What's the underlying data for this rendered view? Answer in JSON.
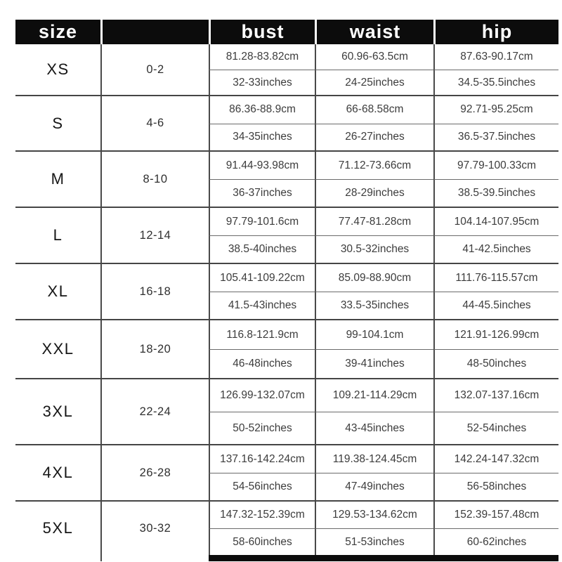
{
  "header": {
    "size_label": "size",
    "bust_label": "bust",
    "waist_label": "waist",
    "hip_label": "hip"
  },
  "colors": {
    "header_bg": "#0c0c0c",
    "header_text": "#ffffff",
    "grid_line": "#4a4a4a",
    "value_text": "#3c3c3c"
  },
  "rows": [
    {
      "size": "XS",
      "range": "0-2",
      "bust_cm": "81.28-83.82cm",
      "waist_cm": "60.96-63.5cm",
      "hip_cm": "87.63-90.17cm",
      "bust_in": "32-33inches",
      "waist_in": "24-25inches",
      "hip_in": "34.5-35.5inches"
    },
    {
      "size": "S",
      "range": "4-6",
      "bust_cm": "86.36-88.9cm",
      "waist_cm": "66-68.58cm",
      "hip_cm": "92.71-95.25cm",
      "bust_in": "34-35inches",
      "waist_in": "26-27inches",
      "hip_in": "36.5-37.5inches"
    },
    {
      "size": "M",
      "range": "8-10",
      "bust_cm": "91.44-93.98cm",
      "waist_cm": "71.12-73.66cm",
      "hip_cm": "97.79-100.33cm",
      "bust_in": "36-37inches",
      "waist_in": "28-29inches",
      "hip_in": "38.5-39.5inches"
    },
    {
      "size": "L",
      "range": "12-14",
      "bust_cm": "97.79-101.6cm",
      "waist_cm": "77.47-81.28cm",
      "hip_cm": "104.14-107.95cm",
      "bust_in": "38.5-40inches",
      "waist_in": "30.5-32inches",
      "hip_in": "41-42.5inches"
    },
    {
      "size": "XL",
      "range": "16-18",
      "bust_cm": "105.41-109.22cm",
      "waist_cm": "85.09-88.90cm",
      "hip_cm": "111.76-115.57cm",
      "bust_in": "41.5-43inches",
      "waist_in": "33.5-35inches",
      "hip_in": "44-45.5inches"
    },
    {
      "size": "XXL",
      "range": "18-20",
      "bust_cm": "116.8-121.9cm",
      "waist_cm": "99-104.1cm",
      "hip_cm": "121.91-126.99cm",
      "bust_in": "46-48inches",
      "waist_in": "39-41inches",
      "hip_in": "48-50inches"
    },
    {
      "size": "3XL",
      "range": "22-24",
      "bust_cm": "126.99-132.07cm",
      "waist_cm": "109.21-114.29cm",
      "hip_cm": "132.07-137.16cm",
      "bust_in": "50-52inches",
      "waist_in": "43-45inches",
      "hip_in": "52-54inches"
    },
    {
      "size": "4XL",
      "range": "26-28",
      "bust_cm": "137.16-142.24cm",
      "waist_cm": "119.38-124.45cm",
      "hip_cm": "142.24-147.32cm",
      "bust_in": "54-56inches",
      "waist_in": "47-49inches",
      "hip_in": "56-58inches"
    },
    {
      "size": "5XL",
      "range": "30-32",
      "bust_cm": "147.32-152.39cm",
      "waist_cm": "129.53-134.62cm",
      "hip_cm": "152.39-157.48cm",
      "bust_in": "58-60inches",
      "waist_in": "51-53inches",
      "hip_in": "60-62inches"
    }
  ]
}
